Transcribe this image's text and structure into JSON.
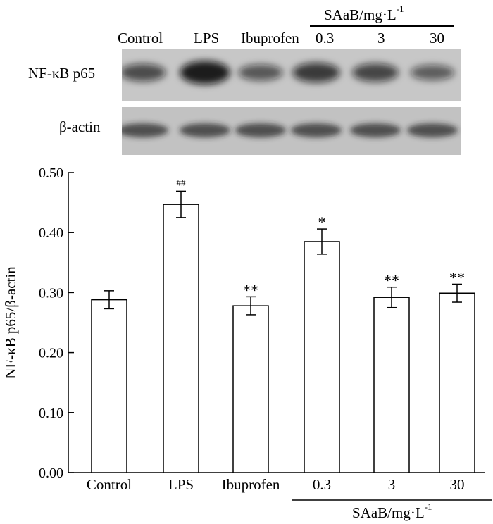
{
  "blot": {
    "lane_labels": [
      "Control",
      "LPS",
      "Ibuprofen",
      "0.3",
      "3",
      "30"
    ],
    "group_label": "SAaB/mg·L",
    "group_label_sup": "-1",
    "band_labels": [
      "NF-κB p65",
      "β-actin"
    ],
    "p65_intensity": [
      0.55,
      0.95,
      0.45,
      0.7,
      0.6,
      0.4
    ],
    "actin_intensity": [
      0.85,
      0.85,
      0.85,
      0.85,
      0.85,
      0.85
    ]
  },
  "chart_data": {
    "type": "bar",
    "categories": [
      "Control",
      "LPS",
      "Ibuprofen",
      "0.3",
      "3",
      "30"
    ],
    "values": [
      0.288,
      0.447,
      0.278,
      0.385,
      0.292,
      0.299
    ],
    "errors": [
      0.015,
      0.022,
      0.015,
      0.021,
      0.017,
      0.015
    ],
    "annotations": [
      "",
      "##",
      "**",
      "*",
      "**",
      "**"
    ],
    "ylabel": "NF-κB p65/β-actin",
    "xlabel": "",
    "group_label": "SAaB/mg·L",
    "group_label_sup": "-1",
    "ylim": [
      0,
      0.5
    ],
    "yticks": [
      "0.00",
      "0.10",
      "0.20",
      "0.30",
      "0.40",
      "0.50"
    ],
    "grid": false,
    "bar_fill": "#ffffff",
    "bar_stroke": "#000000"
  }
}
